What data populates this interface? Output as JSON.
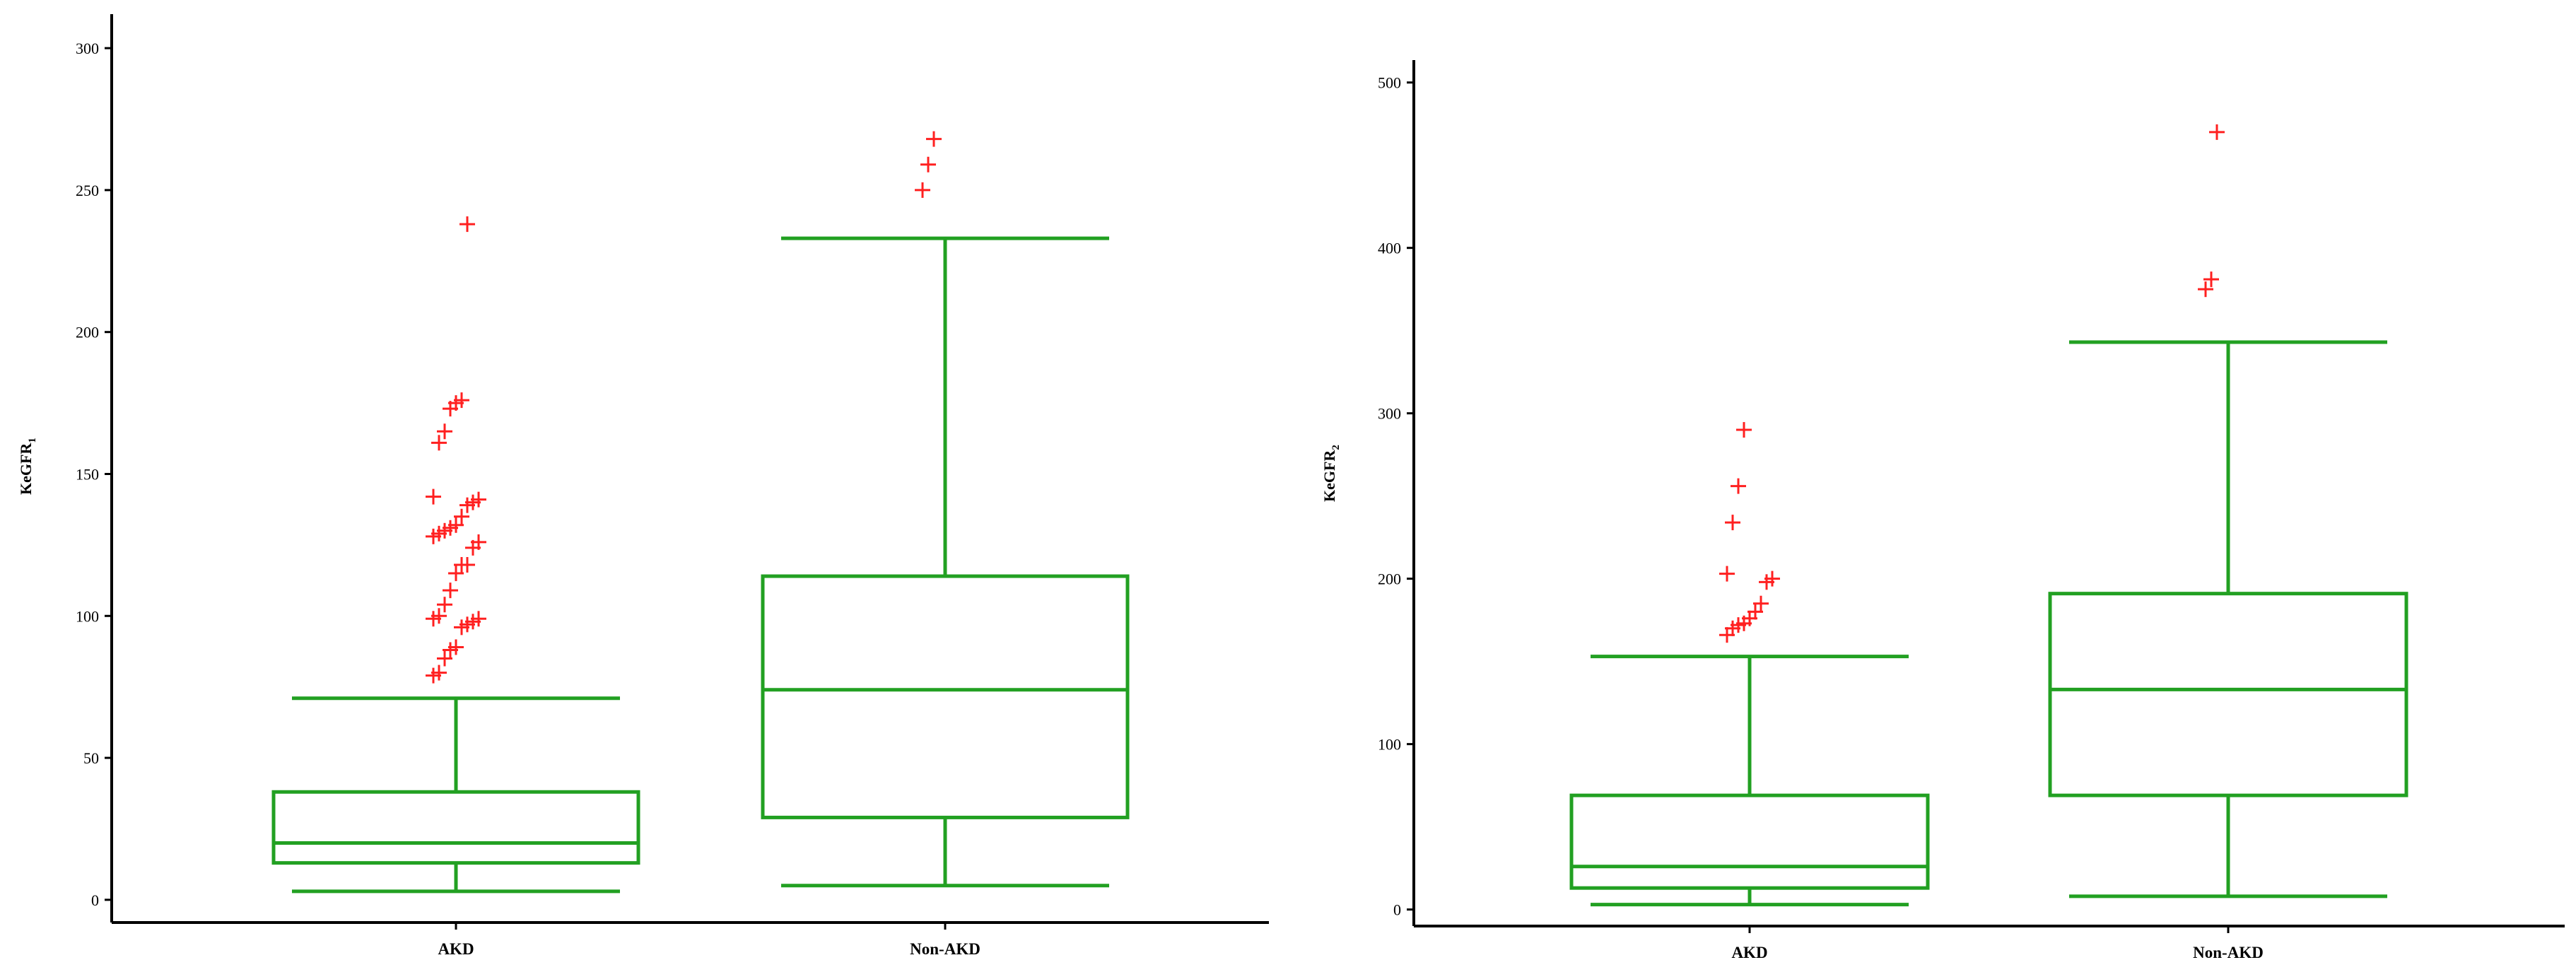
{
  "chart_data": [
    {
      "type": "box",
      "ylabel": "KeGFR",
      "ylabel_subscript": "1",
      "yticks": [
        0,
        50,
        100,
        150,
        200,
        250,
        300
      ],
      "ylim": [
        -8,
        307
      ],
      "categories": [
        "AKD",
        "Non-AKD"
      ],
      "box_color": "#22a022",
      "outlier_color": "#ff2020",
      "boxes": [
        {
          "category": "AKD",
          "whisker_low": 3,
          "q1": 13,
          "median": 20,
          "q3": 38,
          "whisker_high": 71,
          "outliers": [
            79,
            80,
            85,
            88,
            89,
            96,
            97,
            98,
            99,
            99,
            100,
            104,
            109,
            115,
            118,
            118,
            124,
            126,
            128,
            129,
            130,
            131,
            132,
            135,
            139,
            140,
            141,
            142,
            161,
            165,
            173,
            175,
            176,
            238
          ]
        },
        {
          "category": "Non-AKD",
          "whisker_low": 5,
          "q1": 29,
          "median": 74,
          "q3": 114,
          "whisker_high": 233,
          "outliers": [
            250,
            259,
            268
          ]
        }
      ]
    },
    {
      "type": "box",
      "ylabel": "KeGFR",
      "ylabel_subscript": "2",
      "yticks": [
        0,
        100,
        200,
        300,
        400,
        500
      ],
      "ylim": [
        -10,
        505
      ],
      "categories": [
        "AKD",
        "Non-AKD"
      ],
      "box_color": "#22a022",
      "outlier_color": "#ff2020",
      "boxes": [
        {
          "category": "AKD",
          "whisker_low": 3,
          "q1": 13,
          "median": 26,
          "q3": 69,
          "whisker_high": 153,
          "outliers": [
            166,
            170,
            172,
            173,
            176,
            180,
            185,
            198,
            200,
            203,
            234,
            256,
            290
          ]
        },
        {
          "category": "Non-AKD",
          "whisker_low": 8,
          "q1": 69,
          "median": 133,
          "q3": 191,
          "whisker_high": 343,
          "outliers": [
            375,
            381,
            470
          ]
        }
      ]
    }
  ]
}
